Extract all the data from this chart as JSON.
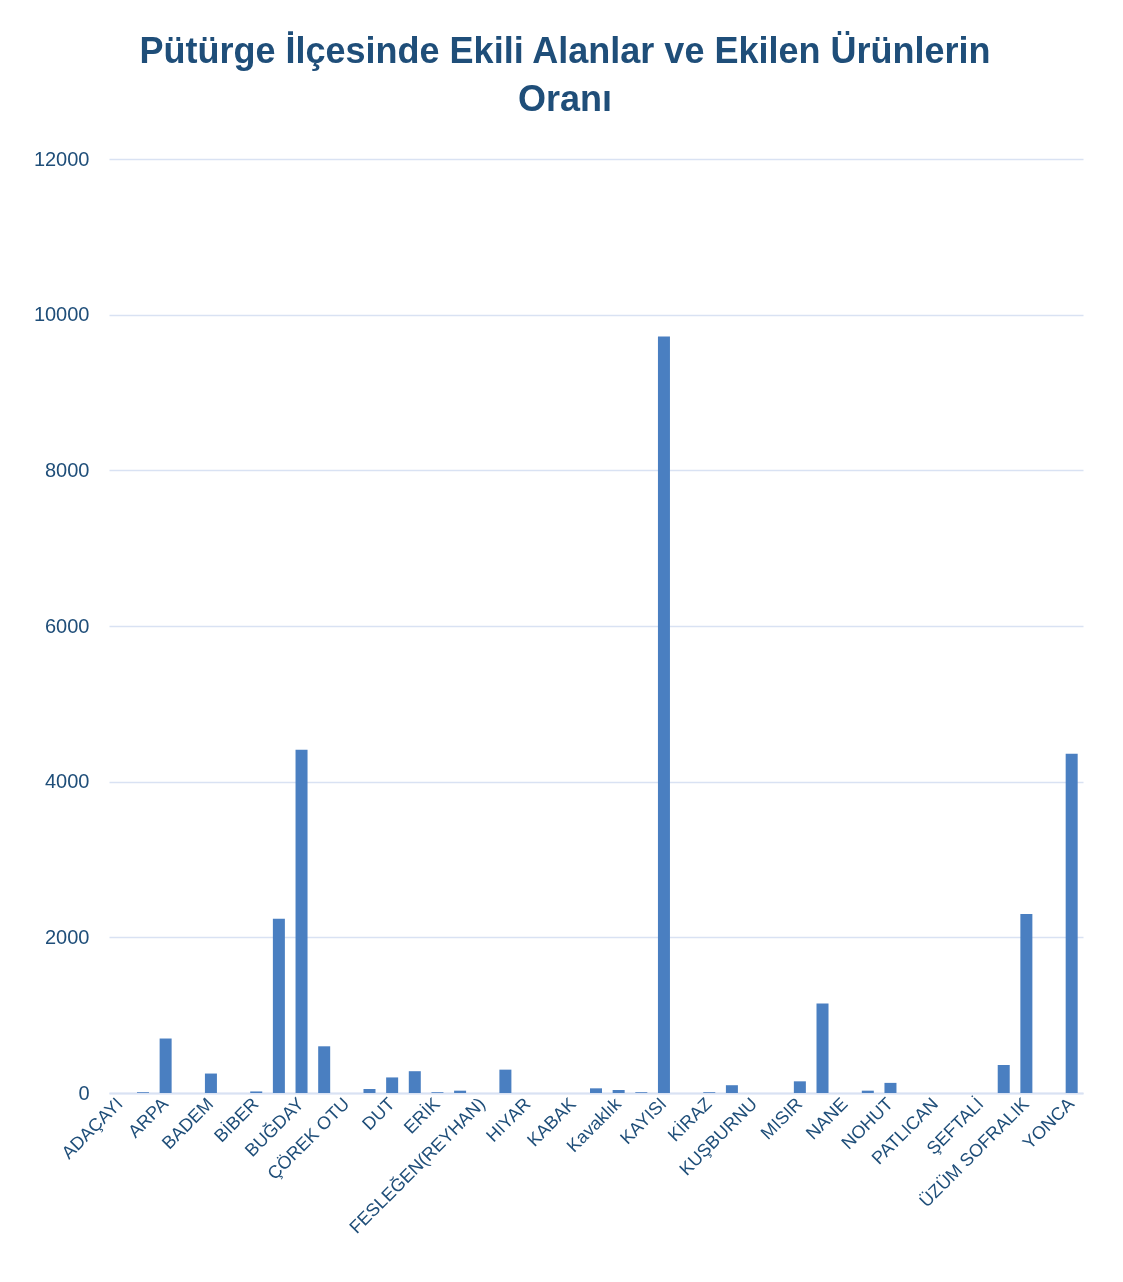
{
  "chart_data": {
    "type": "bar",
    "title": "Pütürge İlçesinde Ekili Alanlar ve Ekilen Ürünlerin Oranı",
    "categories": [
      "ADAÇAYI",
      null,
      "ARPA",
      null,
      "BADEM",
      null,
      "BİBER",
      null,
      "BUĞDAY",
      null,
      "ÇÖREK OTU",
      null,
      "DUT",
      null,
      "ERİK",
      null,
      "FESLEĞEN(REYHAN)",
      null,
      "HIYAR",
      null,
      "KABAK",
      null,
      "Kavaklık",
      null,
      "KAYISI",
      null,
      "KİRAZ",
      null,
      "KUŞBURNU",
      null,
      "MISIR",
      null,
      "NANE",
      null,
      "NOHUT",
      null,
      "PATLICAN",
      null,
      "ŞEFTALİ",
      null,
      "ÜZÜM SOFRALIK",
      null,
      "YONCA"
    ],
    "values": [
      null,
      10,
      700,
      null,
      250,
      null,
      20,
      2240,
      4410,
      600,
      null,
      50,
      200,
      280,
      10,
      30,
      null,
      300,
      null,
      null,
      null,
      60,
      40,
      10,
      9720,
      null,
      10,
      100,
      null,
      null,
      150,
      1150,
      null,
      30,
      130,
      null,
      null,
      null,
      null,
      360,
      2300,
      null,
      4360
    ],
    "color": "#4a7fc1",
    "ylim": [
      0,
      12000
    ],
    "yticks": [
      0,
      2000,
      4000,
      6000,
      8000,
      10000,
      12000
    ],
    "grid": "y"
  }
}
